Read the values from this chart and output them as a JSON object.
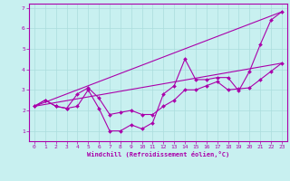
{
  "xlabel": "Windchill (Refroidissement éolien,°C)",
  "bg_color": "#c8f0f0",
  "line_color": "#aa00aa",
  "grid_color": "#aadddd",
  "xlim": [
    -0.5,
    23.5
  ],
  "ylim": [
    0.5,
    7.2
  ],
  "xticks": [
    0,
    1,
    2,
    3,
    4,
    5,
    6,
    7,
    8,
    9,
    10,
    11,
    12,
    13,
    14,
    15,
    16,
    17,
    18,
    19,
    20,
    21,
    22,
    23
  ],
  "yticks": [
    1,
    2,
    3,
    4,
    5,
    6,
    7
  ],
  "lines": [
    {
      "x": [
        0,
        1,
        2,
        3,
        4,
        5,
        6,
        7,
        8,
        9,
        10,
        11,
        12,
        13,
        14,
        15,
        16,
        17,
        18,
        19,
        20,
        21,
        22,
        23
      ],
      "y": [
        2.2,
        2.5,
        2.2,
        2.1,
        2.2,
        3.0,
        2.1,
        1.0,
        1.0,
        1.3,
        1.1,
        1.4,
        2.8,
        3.2,
        4.5,
        3.5,
        3.5,
        3.6,
        3.6,
        2.95,
        3.9,
        5.2,
        6.4,
        6.8
      ],
      "markers": true
    },
    {
      "x": [
        0,
        1,
        2,
        3,
        4,
        5,
        6,
        7,
        8,
        9,
        10,
        11,
        12,
        13,
        14,
        15,
        16,
        17,
        18,
        19,
        20,
        21,
        22,
        23
      ],
      "y": [
        2.2,
        2.5,
        2.2,
        2.1,
        2.8,
        3.1,
        2.6,
        1.8,
        1.9,
        2.0,
        1.8,
        1.8,
        2.2,
        2.5,
        3.0,
        3.0,
        3.2,
        3.4,
        3.0,
        3.05,
        3.1,
        3.5,
        3.9,
        4.3
      ],
      "markers": true
    },
    {
      "x": [
        0,
        23
      ],
      "y": [
        2.2,
        6.8
      ],
      "markers": false
    },
    {
      "x": [
        0,
        23
      ],
      "y": [
        2.2,
        4.3
      ],
      "markers": false
    }
  ]
}
